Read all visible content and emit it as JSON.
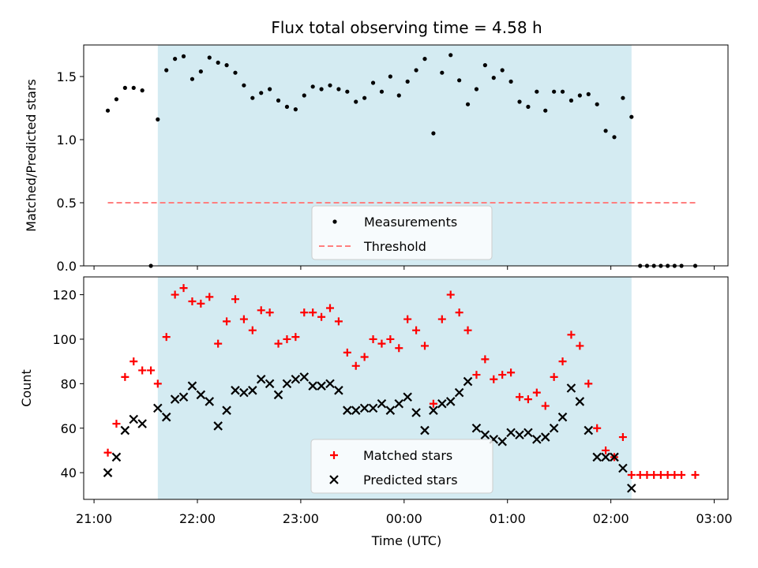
{
  "figure": {
    "title": "Flux total observing time = 4.58 h",
    "xlabel": "Time (UTC)",
    "colors": {
      "shade": "#add8e6",
      "threshold": "#ff7f7f",
      "matched": "#ff0000",
      "predicted": "#000000"
    }
  },
  "chart_data": [
    {
      "type": "scatter",
      "panel": "top",
      "ylabel": "Matched/Predicted stars",
      "xlim": [
        "20:54",
        "03:08"
      ],
      "ylim": [
        0,
        1.75
      ],
      "yticks": [
        "0.0",
        "0.5",
        "1.0",
        "1.5"
      ],
      "xticks": [
        "21:00",
        "22:00",
        "23:00",
        "00:00",
        "01:00",
        "02:00",
        "03:00"
      ],
      "shaded_span": {
        "start": "21:37",
        "end": "02:12"
      },
      "legend_position": "lower center",
      "legend": [
        "Measurements",
        "Threshold"
      ],
      "threshold": {
        "name": "Threshold",
        "value": 0.5,
        "x": [
          "21:08",
          "02:49"
        ]
      },
      "series": [
        {
          "name": "Measurements",
          "marker": "dot",
          "points": [
            {
              "x": "21:08",
              "y": 1.23
            },
            {
              "x": "21:13",
              "y": 1.32
            },
            {
              "x": "21:18",
              "y": 1.41
            },
            {
              "x": "21:23",
              "y": 1.41
            },
            {
              "x": "21:28",
              "y": 1.39
            },
            {
              "x": "21:33",
              "y": 0.0
            },
            {
              "x": "21:37",
              "y": 1.16
            },
            {
              "x": "21:42",
              "y": 1.55
            },
            {
              "x": "21:47",
              "y": 1.64
            },
            {
              "x": "21:52",
              "y": 1.66
            },
            {
              "x": "21:57",
              "y": 1.48
            },
            {
              "x": "22:02",
              "y": 1.54
            },
            {
              "x": "22:07",
              "y": 1.65
            },
            {
              "x": "22:12",
              "y": 1.61
            },
            {
              "x": "22:17",
              "y": 1.59
            },
            {
              "x": "22:22",
              "y": 1.53
            },
            {
              "x": "22:27",
              "y": 1.43
            },
            {
              "x": "22:32",
              "y": 1.33
            },
            {
              "x": "22:37",
              "y": 1.37
            },
            {
              "x": "22:42",
              "y": 1.4
            },
            {
              "x": "22:47",
              "y": 1.31
            },
            {
              "x": "22:52",
              "y": 1.26
            },
            {
              "x": "22:57",
              "y": 1.24
            },
            {
              "x": "23:02",
              "y": 1.35
            },
            {
              "x": "23:07",
              "y": 1.42
            },
            {
              "x": "23:12",
              "y": 1.4
            },
            {
              "x": "23:17",
              "y": 1.43
            },
            {
              "x": "23:22",
              "y": 1.4
            },
            {
              "x": "23:27",
              "y": 1.38
            },
            {
              "x": "23:32",
              "y": 1.3
            },
            {
              "x": "23:37",
              "y": 1.33
            },
            {
              "x": "23:42",
              "y": 1.45
            },
            {
              "x": "23:47",
              "y": 1.38
            },
            {
              "x": "23:52",
              "y": 1.5
            },
            {
              "x": "23:57",
              "y": 1.35
            },
            {
              "x": "00:02",
              "y": 1.46
            },
            {
              "x": "00:07",
              "y": 1.55
            },
            {
              "x": "00:12",
              "y": 1.64
            },
            {
              "x": "00:17",
              "y": 1.05
            },
            {
              "x": "00:22",
              "y": 1.53
            },
            {
              "x": "00:27",
              "y": 1.67
            },
            {
              "x": "00:32",
              "y": 1.47
            },
            {
              "x": "00:37",
              "y": 1.28
            },
            {
              "x": "00:42",
              "y": 1.4
            },
            {
              "x": "00:47",
              "y": 1.59
            },
            {
              "x": "00:52",
              "y": 1.49
            },
            {
              "x": "00:57",
              "y": 1.55
            },
            {
              "x": "01:02",
              "y": 1.46
            },
            {
              "x": "01:07",
              "y": 1.3
            },
            {
              "x": "01:12",
              "y": 1.26
            },
            {
              "x": "01:17",
              "y": 1.38
            },
            {
              "x": "01:22",
              "y": 1.23
            },
            {
              "x": "01:27",
              "y": 1.38
            },
            {
              "x": "01:32",
              "y": 1.38
            },
            {
              "x": "01:37",
              "y": 1.31
            },
            {
              "x": "01:42",
              "y": 1.35
            },
            {
              "x": "01:47",
              "y": 1.36
            },
            {
              "x": "01:52",
              "y": 1.28
            },
            {
              "x": "01:57",
              "y": 1.07
            },
            {
              "x": "02:02",
              "y": 1.02
            },
            {
              "x": "02:07",
              "y": 1.33
            },
            {
              "x": "02:12",
              "y": 1.18
            },
            {
              "x": "02:17",
              "y": 0.0
            },
            {
              "x": "02:21",
              "y": 0.0
            },
            {
              "x": "02:25",
              "y": 0.0
            },
            {
              "x": "02:29",
              "y": 0.0
            },
            {
              "x": "02:33",
              "y": 0.0
            },
            {
              "x": "02:37",
              "y": 0.0
            },
            {
              "x": "02:41",
              "y": 0.0
            },
            {
              "x": "02:49",
              "y": 0.0
            }
          ]
        }
      ]
    },
    {
      "type": "scatter",
      "panel": "bottom",
      "ylabel": "Count",
      "xlabel": "Time (UTC)",
      "xlim": [
        "20:54",
        "03:08"
      ],
      "ylim": [
        28,
        128
      ],
      "yticks": [
        "40",
        "60",
        "80",
        "100",
        "120"
      ],
      "xticks": [
        "21:00",
        "22:00",
        "23:00",
        "00:00",
        "01:00",
        "02:00",
        "03:00"
      ],
      "shaded_span": {
        "start": "21:37",
        "end": "02:12"
      },
      "legend_position": "lower center",
      "legend": [
        "Matched stars",
        "Predicted stars"
      ],
      "series": [
        {
          "name": "Matched stars",
          "marker": "plus",
          "points": [
            {
              "x": "21:08",
              "y": 49
            },
            {
              "x": "21:13",
              "y": 62
            },
            {
              "x": "21:18",
              "y": 83
            },
            {
              "x": "21:23",
              "y": 90
            },
            {
              "x": "21:28",
              "y": 86
            },
            {
              "x": "21:33",
              "y": 86
            },
            {
              "x": "21:37",
              "y": 80
            },
            {
              "x": "21:42",
              "y": 101
            },
            {
              "x": "21:47",
              "y": 120
            },
            {
              "x": "21:52",
              "y": 123
            },
            {
              "x": "21:57",
              "y": 117
            },
            {
              "x": "22:02",
              "y": 116
            },
            {
              "x": "22:07",
              "y": 119
            },
            {
              "x": "22:12",
              "y": 98
            },
            {
              "x": "22:17",
              "y": 108
            },
            {
              "x": "22:22",
              "y": 118
            },
            {
              "x": "22:27",
              "y": 109
            },
            {
              "x": "22:32",
              "y": 104
            },
            {
              "x": "22:37",
              "y": 113
            },
            {
              "x": "22:42",
              "y": 112
            },
            {
              "x": "22:47",
              "y": 98
            },
            {
              "x": "22:52",
              "y": 100
            },
            {
              "x": "22:57",
              "y": 101
            },
            {
              "x": "23:02",
              "y": 112
            },
            {
              "x": "23:07",
              "y": 112
            },
            {
              "x": "23:12",
              "y": 110
            },
            {
              "x": "23:17",
              "y": 114
            },
            {
              "x": "23:22",
              "y": 108
            },
            {
              "x": "23:27",
              "y": 94
            },
            {
              "x": "23:32",
              "y": 88
            },
            {
              "x": "23:37",
              "y": 92
            },
            {
              "x": "23:42",
              "y": 100
            },
            {
              "x": "23:47",
              "y": 98
            },
            {
              "x": "23:52",
              "y": 100
            },
            {
              "x": "23:57",
              "y": 96
            },
            {
              "x": "00:02",
              "y": 109
            },
            {
              "x": "00:07",
              "y": 104
            },
            {
              "x": "00:12",
              "y": 97
            },
            {
              "x": "00:17",
              "y": 71
            },
            {
              "x": "00:22",
              "y": 109
            },
            {
              "x": "00:27",
              "y": 120
            },
            {
              "x": "00:32",
              "y": 112
            },
            {
              "x": "00:37",
              "y": 104
            },
            {
              "x": "00:42",
              "y": 84
            },
            {
              "x": "00:47",
              "y": 91
            },
            {
              "x": "00:52",
              "y": 82
            },
            {
              "x": "00:57",
              "y": 84
            },
            {
              "x": "01:02",
              "y": 85
            },
            {
              "x": "01:07",
              "y": 74
            },
            {
              "x": "01:12",
              "y": 73
            },
            {
              "x": "01:17",
              "y": 76
            },
            {
              "x": "01:22",
              "y": 70
            },
            {
              "x": "01:27",
              "y": 83
            },
            {
              "x": "01:32",
              "y": 90
            },
            {
              "x": "01:37",
              "y": 102
            },
            {
              "x": "01:42",
              "y": 97
            },
            {
              "x": "01:47",
              "y": 80
            },
            {
              "x": "01:52",
              "y": 60
            },
            {
              "x": "01:57",
              "y": 50
            },
            {
              "x": "02:02",
              "y": 47
            },
            {
              "x": "02:07",
              "y": 56
            },
            {
              "x": "02:12",
              "y": 39
            },
            {
              "x": "02:17",
              "y": 39
            },
            {
              "x": "02:21",
              "y": 39
            },
            {
              "x": "02:25",
              "y": 39
            },
            {
              "x": "02:29",
              "y": 39
            },
            {
              "x": "02:33",
              "y": 39
            },
            {
              "x": "02:37",
              "y": 39
            },
            {
              "x": "02:41",
              "y": 39
            },
            {
              "x": "02:49",
              "y": 39
            }
          ]
        },
        {
          "name": "Predicted stars",
          "marker": "x",
          "points": [
            {
              "x": "21:08",
              "y": 40
            },
            {
              "x": "21:13",
              "y": 47
            },
            {
              "x": "21:18",
              "y": 59
            },
            {
              "x": "21:23",
              "y": 64
            },
            {
              "x": "21:28",
              "y": 62
            },
            {
              "x": "21:37",
              "y": 69
            },
            {
              "x": "21:42",
              "y": 65
            },
            {
              "x": "21:47",
              "y": 73
            },
            {
              "x": "21:52",
              "y": 74
            },
            {
              "x": "21:57",
              "y": 79
            },
            {
              "x": "22:02",
              "y": 75
            },
            {
              "x": "22:07",
              "y": 72
            },
            {
              "x": "22:12",
              "y": 61
            },
            {
              "x": "22:17",
              "y": 68
            },
            {
              "x": "22:22",
              "y": 77
            },
            {
              "x": "22:27",
              "y": 76
            },
            {
              "x": "22:32",
              "y": 77
            },
            {
              "x": "22:37",
              "y": 82
            },
            {
              "x": "22:42",
              "y": 80
            },
            {
              "x": "22:47",
              "y": 75
            },
            {
              "x": "22:52",
              "y": 80
            },
            {
              "x": "22:57",
              "y": 82
            },
            {
              "x": "23:02",
              "y": 83
            },
            {
              "x": "23:07",
              "y": 79
            },
            {
              "x": "23:12",
              "y": 79
            },
            {
              "x": "23:17",
              "y": 80
            },
            {
              "x": "23:22",
              "y": 77
            },
            {
              "x": "23:27",
              "y": 68
            },
            {
              "x": "23:32",
              "y": 68
            },
            {
              "x": "23:37",
              "y": 69
            },
            {
              "x": "23:42",
              "y": 69
            },
            {
              "x": "23:47",
              "y": 71
            },
            {
              "x": "23:52",
              "y": 68
            },
            {
              "x": "23:57",
              "y": 71
            },
            {
              "x": "00:02",
              "y": 74
            },
            {
              "x": "00:07",
              "y": 67
            },
            {
              "x": "00:12",
              "y": 59
            },
            {
              "x": "00:17",
              "y": 68
            },
            {
              "x": "00:22",
              "y": 71
            },
            {
              "x": "00:27",
              "y": 72
            },
            {
              "x": "00:32",
              "y": 76
            },
            {
              "x": "00:37",
              "y": 81
            },
            {
              "x": "00:42",
              "y": 60
            },
            {
              "x": "00:47",
              "y": 57
            },
            {
              "x": "00:52",
              "y": 55
            },
            {
              "x": "00:57",
              "y": 54
            },
            {
              "x": "01:02",
              "y": 58
            },
            {
              "x": "01:07",
              "y": 57
            },
            {
              "x": "01:12",
              "y": 58
            },
            {
              "x": "01:17",
              "y": 55
            },
            {
              "x": "01:22",
              "y": 56
            },
            {
              "x": "01:27",
              "y": 60
            },
            {
              "x": "01:32",
              "y": 65
            },
            {
              "x": "01:37",
              "y": 78
            },
            {
              "x": "01:42",
              "y": 72
            },
            {
              "x": "01:47",
              "y": 59
            },
            {
              "x": "01:52",
              "y": 47
            },
            {
              "x": "01:57",
              "y": 47
            },
            {
              "x": "02:02",
              "y": 47
            },
            {
              "x": "02:07",
              "y": 42
            },
            {
              "x": "02:12",
              "y": 33
            }
          ]
        }
      ]
    }
  ]
}
